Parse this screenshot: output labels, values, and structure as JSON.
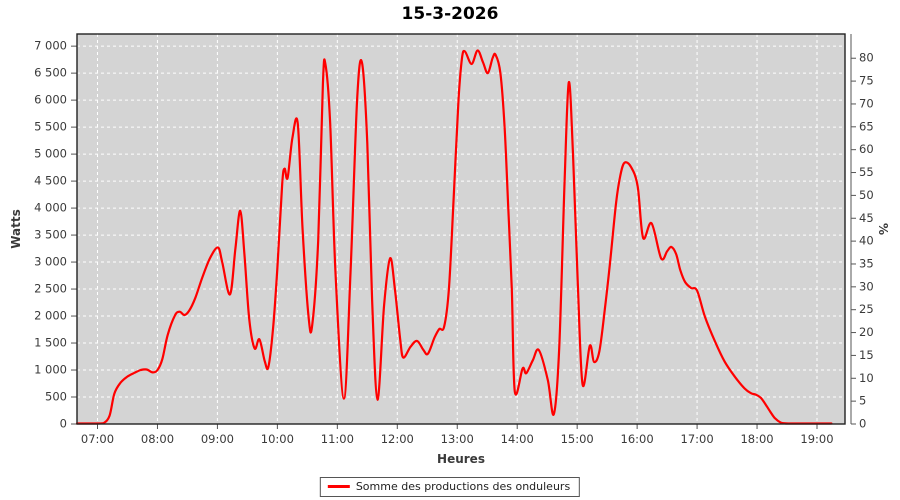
{
  "chart_data": {
    "type": "line",
    "title": "15-3-2026",
    "xlabel": "Heures",
    "ylabel": "Watts",
    "ylabel_right": "%",
    "grid": true,
    "legend_position": "bottom-center",
    "colors": {
      "series": "#ff0000",
      "plot_bg": "#d4d4d4",
      "grid": "#ffffff",
      "border": "#222222",
      "axis_text": "#3a3a3a",
      "tick": "#555555"
    },
    "x_axis": {
      "tick_labels": [
        "07:00",
        "08:00",
        "09:00",
        "10:00",
        "11:00",
        "12:00",
        "13:00",
        "14:00",
        "15:00",
        "16:00",
        "17:00",
        "18:00",
        "19:00"
      ],
      "tick_hours": [
        7,
        8,
        9,
        10,
        11,
        12,
        13,
        14,
        15,
        16,
        17,
        18,
        19
      ],
      "range_hours": [
        6.658,
        19.467
      ]
    },
    "y_axis_left": {
      "label": "Watts",
      "tick_labels": [
        "0",
        "500",
        "1 000",
        "1 500",
        "2 000",
        "2 500",
        "3 000",
        "3 500",
        "4 000",
        "4 500",
        "5 000",
        "5 500",
        "6 000",
        "6 500",
        "7 000"
      ],
      "tick_values": [
        0,
        500,
        1000,
        1500,
        2000,
        2500,
        3000,
        3500,
        4000,
        4500,
        5000,
        5500,
        6000,
        6500,
        7000
      ],
      "range": [
        0,
        7225
      ]
    },
    "y_axis_right": {
      "label": "%",
      "tick_values": [
        0,
        5,
        10,
        15,
        20,
        25,
        30,
        35,
        40,
        45,
        50,
        55,
        60,
        65,
        70,
        75,
        80
      ],
      "range": [
        0,
        85.3
      ]
    },
    "series": [
      {
        "name": "Somme des productions des onduleurs",
        "color": "#ff0000",
        "points_hour_watts": [
          [
            6.66,
            0
          ],
          [
            6.85,
            0
          ],
          [
            7.0,
            0
          ],
          [
            7.1,
            15
          ],
          [
            7.2,
            150
          ],
          [
            7.28,
            560
          ],
          [
            7.38,
            760
          ],
          [
            7.5,
            880
          ],
          [
            7.62,
            950
          ],
          [
            7.72,
            1000
          ],
          [
            7.82,
            1010
          ],
          [
            7.92,
            955
          ],
          [
            8.0,
            1000
          ],
          [
            8.08,
            1200
          ],
          [
            8.17,
            1650
          ],
          [
            8.29,
            2010
          ],
          [
            8.37,
            2080
          ],
          [
            8.45,
            2020
          ],
          [
            8.53,
            2100
          ],
          [
            8.63,
            2330
          ],
          [
            8.75,
            2720
          ],
          [
            8.88,
            3080
          ],
          [
            9.01,
            3270
          ],
          [
            9.08,
            3000
          ],
          [
            9.21,
            2400
          ],
          [
            9.3,
            3250
          ],
          [
            9.38,
            3950
          ],
          [
            9.45,
            3150
          ],
          [
            9.53,
            1950
          ],
          [
            9.62,
            1400
          ],
          [
            9.7,
            1570
          ],
          [
            9.79,
            1160
          ],
          [
            9.85,
            1060
          ],
          [
            9.93,
            1800
          ],
          [
            10.0,
            2900
          ],
          [
            10.08,
            4450
          ],
          [
            10.12,
            4730
          ],
          [
            10.17,
            4560
          ],
          [
            10.25,
            5300
          ],
          [
            10.34,
            5560
          ],
          [
            10.42,
            3600
          ],
          [
            10.52,
            1980
          ],
          [
            10.58,
            1830
          ],
          [
            10.68,
            3400
          ],
          [
            10.76,
            6300
          ],
          [
            10.8,
            6680
          ],
          [
            10.88,
            5600
          ],
          [
            10.97,
            2800
          ],
          [
            11.11,
            470
          ],
          [
            11.22,
            2800
          ],
          [
            11.33,
            6000
          ],
          [
            11.41,
            6700
          ],
          [
            11.5,
            5200
          ],
          [
            11.58,
            2300
          ],
          [
            11.67,
            450
          ],
          [
            11.78,
            2200
          ],
          [
            11.88,
            3070
          ],
          [
            11.96,
            2500
          ],
          [
            12.05,
            1550
          ],
          [
            12.1,
            1230
          ],
          [
            12.22,
            1430
          ],
          [
            12.33,
            1540
          ],
          [
            12.43,
            1380
          ],
          [
            12.51,
            1300
          ],
          [
            12.62,
            1600
          ],
          [
            12.7,
            1760
          ],
          [
            12.78,
            1800
          ],
          [
            12.86,
            2500
          ],
          [
            12.94,
            4200
          ],
          [
            13.02,
            6000
          ],
          [
            13.08,
            6780
          ],
          [
            13.13,
            6900
          ],
          [
            13.24,
            6670
          ],
          [
            13.34,
            6920
          ],
          [
            13.43,
            6700
          ],
          [
            13.51,
            6500
          ],
          [
            13.59,
            6780
          ],
          [
            13.64,
            6840
          ],
          [
            13.72,
            6500
          ],
          [
            13.79,
            5500
          ],
          [
            13.85,
            4030
          ],
          [
            13.91,
            2500
          ],
          [
            13.96,
            600
          ],
          [
            14.09,
            1030
          ],
          [
            14.15,
            940
          ],
          [
            14.26,
            1180
          ],
          [
            14.36,
            1370
          ],
          [
            14.51,
            815
          ],
          [
            14.61,
            180
          ],
          [
            14.7,
            1400
          ],
          [
            14.79,
            4500
          ],
          [
            14.86,
            6330
          ],
          [
            14.93,
            5000
          ],
          [
            15.01,
            2600
          ],
          [
            15.09,
            730
          ],
          [
            15.21,
            1450
          ],
          [
            15.28,
            1150
          ],
          [
            15.37,
            1350
          ],
          [
            15.47,
            2200
          ],
          [
            15.55,
            3000
          ],
          [
            15.65,
            4100
          ],
          [
            15.72,
            4600
          ],
          [
            15.79,
            4840
          ],
          [
            15.9,
            4760
          ],
          [
            16.01,
            4400
          ],
          [
            16.1,
            3450
          ],
          [
            16.24,
            3720
          ],
          [
            16.4,
            3070
          ],
          [
            16.5,
            3200
          ],
          [
            16.57,
            3280
          ],
          [
            16.65,
            3150
          ],
          [
            16.72,
            2850
          ],
          [
            16.8,
            2630
          ],
          [
            16.9,
            2520
          ],
          [
            17.0,
            2470
          ],
          [
            17.13,
            1990
          ],
          [
            17.3,
            1525
          ],
          [
            17.46,
            1155
          ],
          [
            17.63,
            875
          ],
          [
            17.79,
            660
          ],
          [
            17.9,
            570
          ],
          [
            17.98,
            545
          ],
          [
            18.06,
            490
          ],
          [
            18.13,
            385
          ],
          [
            18.22,
            230
          ],
          [
            18.3,
            105
          ],
          [
            18.4,
            25
          ],
          [
            18.52,
            3
          ],
          [
            18.7,
            0
          ],
          [
            19.0,
            0
          ],
          [
            19.24,
            0
          ]
        ]
      }
    ]
  }
}
